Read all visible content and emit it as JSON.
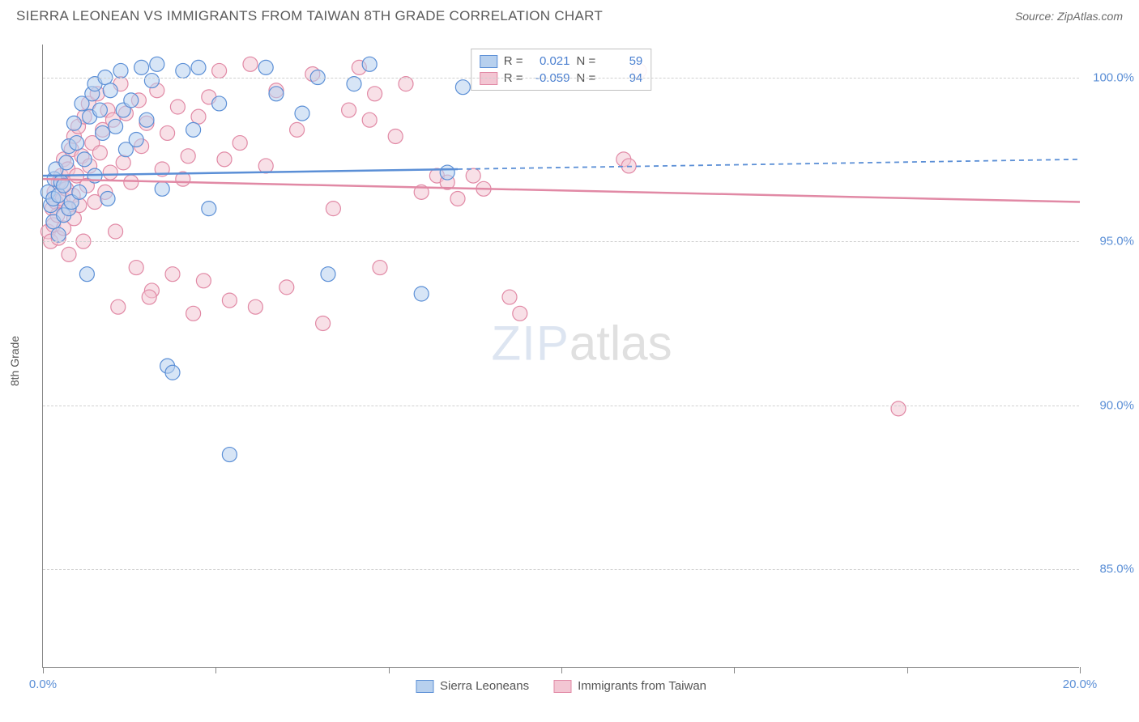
{
  "header": {
    "title": "SIERRA LEONEAN VS IMMIGRANTS FROM TAIWAN 8TH GRADE CORRELATION CHART",
    "source": "Source: ZipAtlas.com"
  },
  "axes": {
    "y_label": "8th Grade",
    "x_min": 0.0,
    "x_max": 20.0,
    "y_min": 82.0,
    "y_max": 101.0,
    "y_ticks": [
      {
        "v": 85.0,
        "label": "85.0%"
      },
      {
        "v": 90.0,
        "label": "90.0%"
      },
      {
        "v": 95.0,
        "label": "95.0%"
      },
      {
        "v": 100.0,
        "label": "100.0%"
      }
    ],
    "x_ticks": [
      {
        "v": 0.0,
        "label": "0.0%"
      },
      {
        "v": 3.33
      },
      {
        "v": 6.67
      },
      {
        "v": 10.0
      },
      {
        "v": 13.33
      },
      {
        "v": 16.67
      },
      {
        "v": 20.0,
        "label": "20.0%"
      }
    ],
    "grid_color": "#d0d0d0",
    "axis_color": "#888888",
    "background": "#ffffff"
  },
  "series": {
    "a": {
      "name": "Sierra Leoneans",
      "fill": "#b7d0ee",
      "stroke": "#5b8fd6",
      "fill_opacity": 0.55,
      "marker_radius": 9,
      "R": "0.021",
      "N": "59",
      "trend": {
        "y_start": 97.0,
        "y_end": 97.5,
        "solid_until_x": 8.0
      },
      "points": [
        [
          0.1,
          96.5
        ],
        [
          0.15,
          96.1
        ],
        [
          0.2,
          96.3
        ],
        [
          0.2,
          95.6
        ],
        [
          0.22,
          96.9
        ],
        [
          0.25,
          97.2
        ],
        [
          0.3,
          96.4
        ],
        [
          0.3,
          95.2
        ],
        [
          0.35,
          96.8
        ],
        [
          0.4,
          95.8
        ],
        [
          0.4,
          96.7
        ],
        [
          0.45,
          97.4
        ],
        [
          0.5,
          96.0
        ],
        [
          0.5,
          97.9
        ],
        [
          0.55,
          96.2
        ],
        [
          0.6,
          98.6
        ],
        [
          0.65,
          98.0
        ],
        [
          0.7,
          96.5
        ],
        [
          0.75,
          99.2
        ],
        [
          0.8,
          97.5
        ],
        [
          0.85,
          94.0
        ],
        [
          0.9,
          98.8
        ],
        [
          0.95,
          99.5
        ],
        [
          1.0,
          99.8
        ],
        [
          1.0,
          97.0
        ],
        [
          1.1,
          99.0
        ],
        [
          1.15,
          98.3
        ],
        [
          1.2,
          100.0
        ],
        [
          1.25,
          96.3
        ],
        [
          1.3,
          99.6
        ],
        [
          1.4,
          98.5
        ],
        [
          1.5,
          100.2
        ],
        [
          1.55,
          99.0
        ],
        [
          1.6,
          97.8
        ],
        [
          1.7,
          99.3
        ],
        [
          1.8,
          98.1
        ],
        [
          1.9,
          100.3
        ],
        [
          2.0,
          98.7
        ],
        [
          2.1,
          99.9
        ],
        [
          2.2,
          100.4
        ],
        [
          2.3,
          96.6
        ],
        [
          2.4,
          91.2
        ],
        [
          2.5,
          91.0
        ],
        [
          2.7,
          100.2
        ],
        [
          2.9,
          98.4
        ],
        [
          3.0,
          100.3
        ],
        [
          3.2,
          96.0
        ],
        [
          3.4,
          99.2
        ],
        [
          3.6,
          88.5
        ],
        [
          4.3,
          100.3
        ],
        [
          4.5,
          99.5
        ],
        [
          5.0,
          98.9
        ],
        [
          5.3,
          100.0
        ],
        [
          5.5,
          94.0
        ],
        [
          6.0,
          99.8
        ],
        [
          6.3,
          100.4
        ],
        [
          7.3,
          93.4
        ],
        [
          7.8,
          97.1
        ],
        [
          8.1,
          99.7
        ]
      ]
    },
    "b": {
      "name": "Immigrants from Taiwan",
      "fill": "#f3c6d3",
      "stroke": "#e189a5",
      "fill_opacity": 0.55,
      "marker_radius": 9,
      "R": "-0.059",
      "N": "94",
      "trend": {
        "y_start": 96.9,
        "y_end": 96.2,
        "solid_until_x": 20.0
      },
      "points": [
        [
          0.1,
          95.3
        ],
        [
          0.15,
          95.0
        ],
        [
          0.18,
          96.0
        ],
        [
          0.2,
          95.5
        ],
        [
          0.22,
          96.5
        ],
        [
          0.25,
          96.2
        ],
        [
          0.28,
          95.8
        ],
        [
          0.3,
          96.8
        ],
        [
          0.3,
          95.1
        ],
        [
          0.35,
          97.0
        ],
        [
          0.38,
          96.3
        ],
        [
          0.4,
          97.5
        ],
        [
          0.4,
          95.4
        ],
        [
          0.45,
          96.6
        ],
        [
          0.48,
          97.2
        ],
        [
          0.5,
          96.0
        ],
        [
          0.5,
          94.6
        ],
        [
          0.55,
          97.8
        ],
        [
          0.58,
          96.4
        ],
        [
          0.6,
          98.2
        ],
        [
          0.6,
          95.7
        ],
        [
          0.65,
          97.0
        ],
        [
          0.68,
          98.5
        ],
        [
          0.7,
          96.1
        ],
        [
          0.75,
          97.6
        ],
        [
          0.78,
          95.0
        ],
        [
          0.8,
          98.8
        ],
        [
          0.85,
          96.7
        ],
        [
          0.88,
          99.2
        ],
        [
          0.9,
          97.3
        ],
        [
          0.95,
          98.0
        ],
        [
          1.0,
          96.2
        ],
        [
          1.05,
          99.5
        ],
        [
          1.1,
          97.7
        ],
        [
          1.15,
          98.4
        ],
        [
          1.2,
          96.5
        ],
        [
          1.25,
          99.0
        ],
        [
          1.3,
          97.1
        ],
        [
          1.35,
          98.7
        ],
        [
          1.4,
          95.3
        ],
        [
          1.5,
          99.8
        ],
        [
          1.55,
          97.4
        ],
        [
          1.6,
          98.9
        ],
        [
          1.7,
          96.8
        ],
        [
          1.8,
          94.2
        ],
        [
          1.85,
          99.3
        ],
        [
          1.9,
          97.9
        ],
        [
          2.0,
          98.6
        ],
        [
          2.1,
          93.5
        ],
        [
          2.2,
          99.6
        ],
        [
          2.3,
          97.2
        ],
        [
          2.4,
          98.3
        ],
        [
          2.5,
          94.0
        ],
        [
          2.6,
          99.1
        ],
        [
          2.7,
          96.9
        ],
        [
          2.8,
          97.6
        ],
        [
          2.9,
          92.8
        ],
        [
          3.0,
          98.8
        ],
        [
          3.1,
          93.8
        ],
        [
          3.2,
          99.4
        ],
        [
          3.4,
          100.2
        ],
        [
          3.5,
          97.5
        ],
        [
          3.6,
          93.2
        ],
        [
          3.8,
          98.0
        ],
        [
          4.0,
          100.4
        ],
        [
          4.1,
          93.0
        ],
        [
          4.3,
          97.3
        ],
        [
          4.5,
          99.6
        ],
        [
          4.7,
          93.6
        ],
        [
          4.9,
          98.4
        ],
        [
          5.2,
          100.1
        ],
        [
          5.4,
          92.5
        ],
        [
          5.6,
          96.0
        ],
        [
          5.9,
          99.0
        ],
        [
          6.1,
          100.3
        ],
        [
          6.3,
          98.7
        ],
        [
          6.4,
          99.5
        ],
        [
          6.5,
          94.2
        ],
        [
          6.8,
          98.2
        ],
        [
          7.0,
          99.8
        ],
        [
          7.3,
          96.5
        ],
        [
          7.6,
          97.0
        ],
        [
          7.8,
          96.8
        ],
        [
          8.0,
          96.3
        ],
        [
          8.3,
          97.0
        ],
        [
          8.5,
          96.6
        ],
        [
          9.0,
          93.3
        ],
        [
          9.2,
          92.8
        ],
        [
          11.2,
          97.5
        ],
        [
          11.3,
          97.3
        ],
        [
          11.5,
          100.2
        ],
        [
          16.5,
          89.9
        ],
        [
          2.05,
          93.3
        ],
        [
          1.45,
          93.0
        ]
      ]
    }
  },
  "watermark": {
    "text1": "ZIP",
    "text2": "atlas"
  },
  "legend": {
    "a_label": "Sierra Leoneans",
    "b_label": "Immigrants from Taiwan"
  },
  "stats_labels": {
    "r": "R =",
    "n": "N ="
  }
}
